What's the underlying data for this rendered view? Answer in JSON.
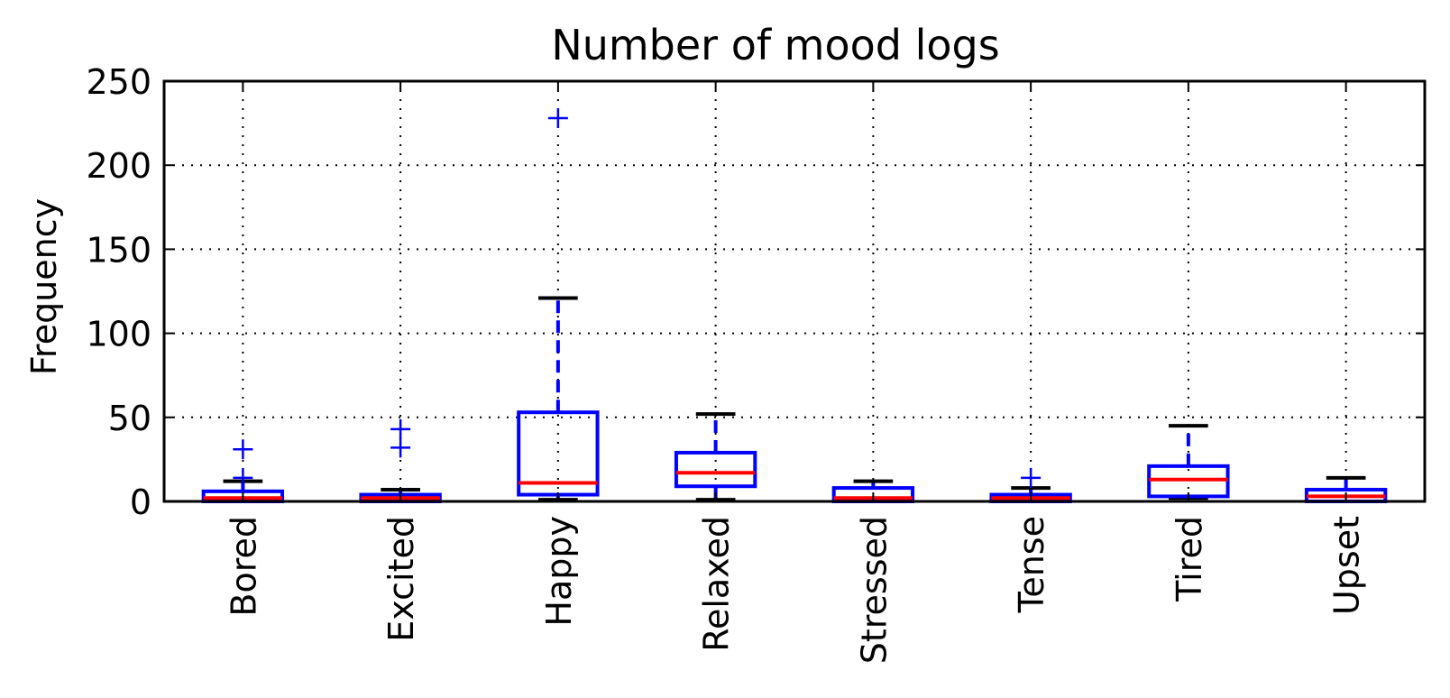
{
  "chart_data": {
    "type": "box",
    "title": "Number of mood logs",
    "xlabel": "",
    "ylabel": "Frequency",
    "ylim": [
      0,
      250
    ],
    "yticks": [
      0,
      50,
      100,
      150,
      200,
      250
    ],
    "grid": true,
    "categories": [
      "Bored",
      "Excited",
      "Happy",
      "Relaxed",
      "Stressed",
      "Tense",
      "Tired",
      "Upset"
    ],
    "boxes": [
      {
        "category": "Bored",
        "whisker_low": 0,
        "q1": 0,
        "median": 2,
        "q3": 6,
        "whisker_high": 12,
        "outliers": [
          14,
          31
        ]
      },
      {
        "category": "Excited",
        "whisker_low": 0,
        "q1": 0,
        "median": 2,
        "q3": 4,
        "whisker_high": 7,
        "outliers": [
          32,
          43
        ]
      },
      {
        "category": "Happy",
        "whisker_low": 1,
        "q1": 4,
        "median": 11,
        "q3": 53,
        "whisker_high": 121,
        "outliers": [
          228
        ]
      },
      {
        "category": "Relaxed",
        "whisker_low": 1,
        "q1": 9,
        "median": 17,
        "q3": 29,
        "whisker_high": 52,
        "outliers": []
      },
      {
        "category": "Stressed",
        "whisker_low": 0,
        "q1": 0,
        "median": 2,
        "q3": 8,
        "whisker_high": 12,
        "outliers": []
      },
      {
        "category": "Tense",
        "whisker_low": 0,
        "q1": 0,
        "median": 2,
        "q3": 4,
        "whisker_high": 8,
        "outliers": [
          14
        ]
      },
      {
        "category": "Tired",
        "whisker_low": 2,
        "q1": 3,
        "median": 13,
        "q3": 21,
        "whisker_high": 45,
        "outliers": []
      },
      {
        "category": "Upset",
        "whisker_low": 0,
        "q1": 0,
        "median": 3,
        "q3": 7,
        "whisker_high": 14,
        "outliers": []
      }
    ],
    "colors": {
      "box": "#0000ff",
      "median": "#ff0000",
      "cap": "#000000",
      "outlier": "#0000ff",
      "grid": "#000000",
      "axes": "#000000"
    }
  }
}
